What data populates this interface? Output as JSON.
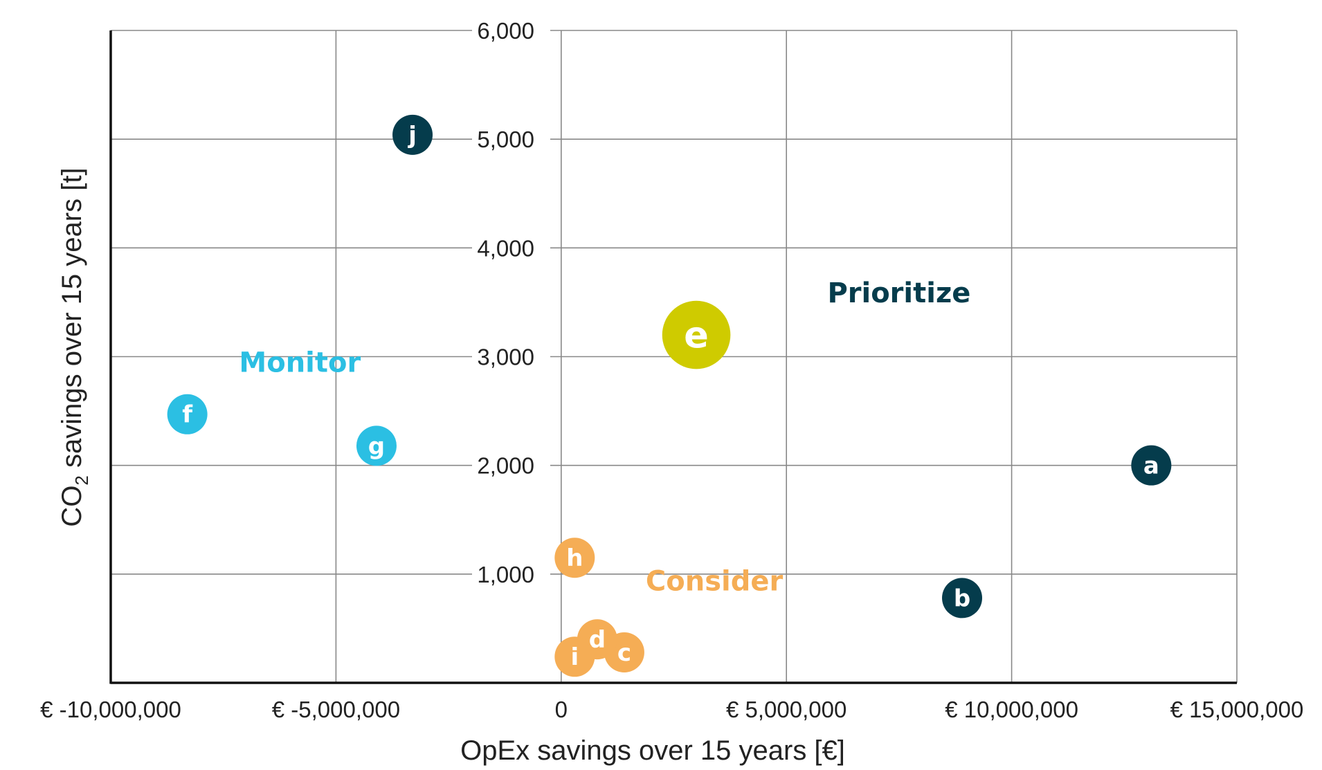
{
  "chart_data": {
    "type": "scatter",
    "xlabel": "OpEx savings over 15 years [€]",
    "ylabel_parts": [
      "CO",
      "2",
      " savings over 15 years [t]"
    ],
    "xlim": [
      -10000000,
      15000000
    ],
    "ylim": [
      0,
      6000
    ],
    "grid": true,
    "x_ticks": [
      {
        "value": -10000000,
        "label": "€ -10,000,000"
      },
      {
        "value": -5000000,
        "label": "€ -5,000,000"
      },
      {
        "value": 0,
        "label": "0"
      },
      {
        "value": 5000000,
        "label": "€ 5,000,000"
      },
      {
        "value": 10000000,
        "label": "€ 10,000,000"
      },
      {
        "value": 15000000,
        "label": "€ 15,000,000"
      }
    ],
    "y_ticks": [
      {
        "value": 1000,
        "label": "1,000"
      },
      {
        "value": 2000,
        "label": "2,000"
      },
      {
        "value": 3000,
        "label": "3,000"
      },
      {
        "value": 4000,
        "label": "4,000"
      },
      {
        "value": 5000,
        "label": "5,000"
      },
      {
        "value": 6000,
        "label": "6,000"
      }
    ],
    "colors": {
      "prioritize": "#053c4c",
      "monitor": "#2bbfe3",
      "consider": "#f5ad55",
      "highlight": "#cfcb00"
    },
    "regions": [
      {
        "label": "Prioritize",
        "x": 7500000,
        "y": 3500000,
        "color": "#053c4c"
      },
      {
        "label": "Monitor",
        "x": -5800000,
        "y": 2860000,
        "color": "#2bbfe3"
      },
      {
        "label": "Consider",
        "x": 3400000,
        "y": 850000,
        "color": "#f5ad55"
      }
    ],
    "points": [
      {
        "label": "a",
        "x": 13100000,
        "y": 2000,
        "color": "#053c4c",
        "size": 1
      },
      {
        "label": "b",
        "x": 8900000,
        "y": 780,
        "color": "#053c4c",
        "size": 1
      },
      {
        "label": "c",
        "x": 1400000,
        "y": 280,
        "color": "#f5ad55",
        "size": 1
      },
      {
        "label": "d",
        "x": 800000,
        "y": 400,
        "color": "#f5ad55",
        "size": 1
      },
      {
        "label": "e",
        "x": 3000000,
        "y": 3200,
        "color": "#cfcb00",
        "size": 1.7
      },
      {
        "label": "f",
        "x": -8300000,
        "y": 2470,
        "color": "#2bbfe3",
        "size": 1
      },
      {
        "label": "g",
        "x": -4100000,
        "y": 2180,
        "color": "#2bbfe3",
        "size": 1
      },
      {
        "label": "h",
        "x": 300000,
        "y": 1150,
        "color": "#f5ad55",
        "size": 1
      },
      {
        "label": "i",
        "x": 300000,
        "y": 240,
        "color": "#f5ad55",
        "size": 1
      },
      {
        "label": "j",
        "x": -3300000,
        "y": 5040,
        "color": "#053c4c",
        "size": 1
      }
    ]
  }
}
